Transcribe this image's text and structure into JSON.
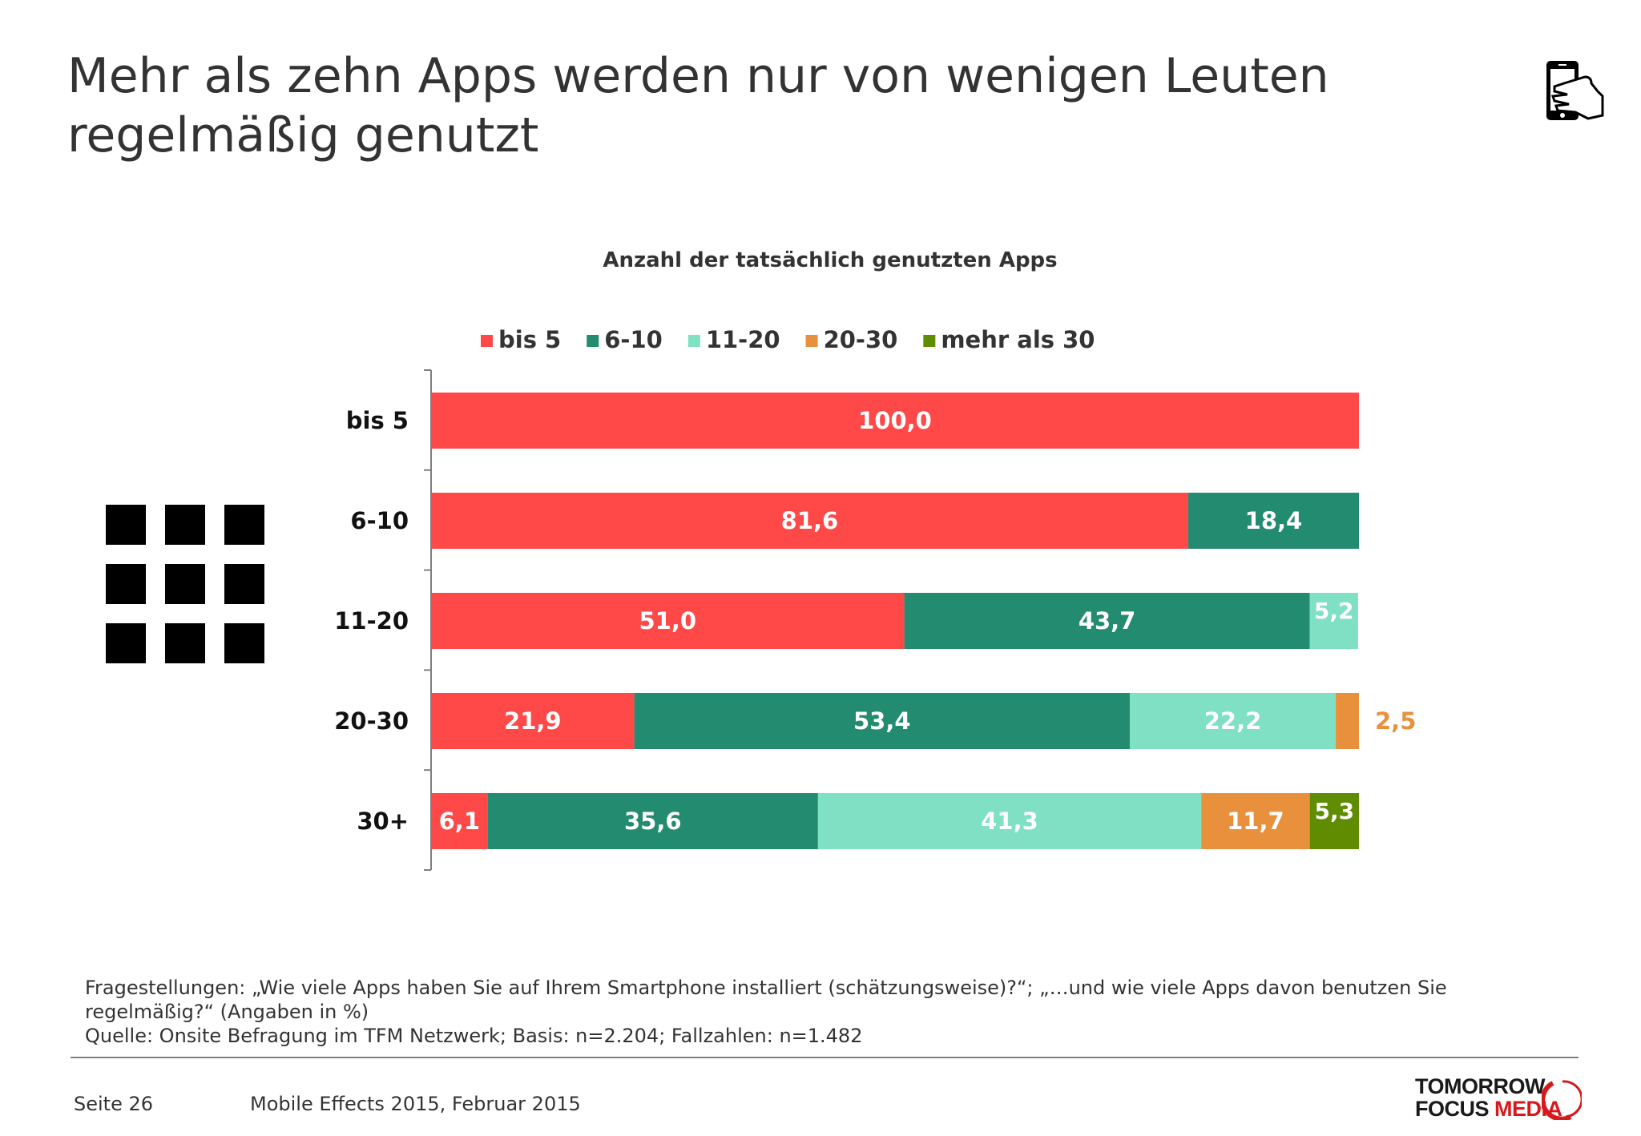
{
  "header": {
    "title_line1": "Mehr als zehn Apps werden nur von wenigen Leuten",
    "title_line2": "regelmäßig genutzt"
  },
  "icons": {
    "top_right": "smartphone-hand-icon",
    "left": "app-grid-icon"
  },
  "colors": {
    "bis5": "#ff4848",
    "6-10": "#228b70",
    "11-20": "#7fe0c4",
    "20-30": "#e8903c",
    "mehr30": "#5f8c00",
    "label_20-30": "#e8903c",
    "label_mehr30": "#6aa000"
  },
  "chart_data": {
    "type": "bar",
    "orientation": "horizontal",
    "stacked": true,
    "title": "Anzahl der tatsächlich genutzten Apps",
    "xlim": [
      0,
      100
    ],
    "legend_position": "top",
    "categories": [
      "bis 5",
      "6-10",
      "11-20",
      "20-30",
      "30+"
    ],
    "series": [
      {
        "name": "bis 5",
        "values": [
          100.0,
          81.6,
          51.0,
          21.9,
          6.1
        ],
        "labels": [
          "100,0",
          "81,6",
          "51,0",
          "21,9",
          "6,1"
        ]
      },
      {
        "name": "6-10",
        "values": [
          0,
          18.4,
          43.7,
          53.4,
          35.6
        ],
        "labels": [
          "",
          "18,4",
          "43,7",
          "53,4",
          "35,6"
        ]
      },
      {
        "name": "11-20",
        "values": [
          0,
          0,
          5.2,
          22.2,
          41.3
        ],
        "labels": [
          "",
          "",
          "5,2",
          "22,2",
          "41,3"
        ]
      },
      {
        "name": "20-30",
        "values": [
          0,
          0,
          0,
          2.5,
          11.7
        ],
        "labels": [
          "",
          "",
          "",
          "2,5",
          "11,7"
        ]
      },
      {
        "name": "mehr als 30",
        "values": [
          0,
          0,
          0,
          0,
          5.3
        ],
        "labels": [
          "",
          "",
          "",
          "",
          "5,3"
        ]
      }
    ]
  },
  "footer": {
    "question": "Fragestellungen: „Wie viele Apps haben Sie auf Ihrem Smartphone installiert (schätzungsweise)?“; „…und wie viele Apps davon benutzen Sie regelmäßig?“ (Angaben in %)",
    "source": "Quelle: Onsite Befragung im TFM Netzwerk; Basis: n=2.204; Fallzahlen: n=1.482",
    "page": "Seite 26",
    "report": "Mobile Effects 2015, Februar 2015",
    "logo_line1": "TOMORROW",
    "logo_line2a": "FOCUS",
    "logo_line2b": "MEDIA"
  }
}
